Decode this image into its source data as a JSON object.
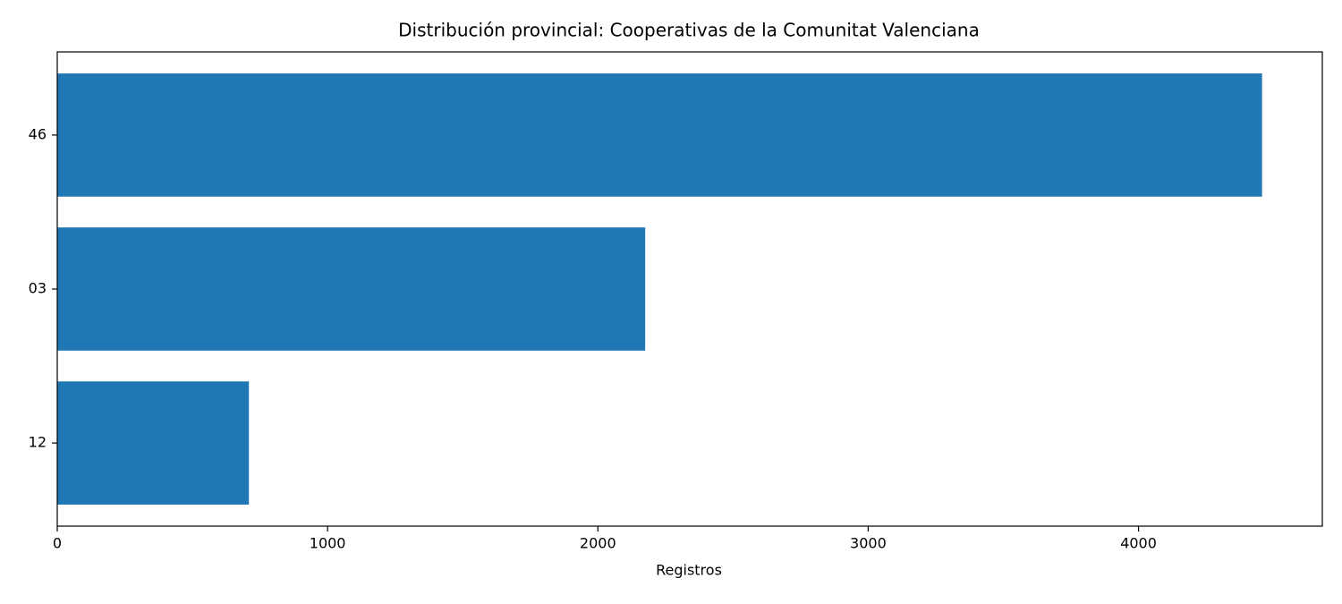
{
  "chart_data": {
    "type": "barh",
    "title": "Distribución provincial: Cooperativas de la Comunitat Valenciana",
    "xlabel": "Registros",
    "categories": [
      "46",
      "03",
      "12"
    ],
    "values": [
      4457,
      2175,
      709
    ],
    "color": "#1f77b4",
    "xlim": [
      0,
      4680
    ],
    "xticks": [
      0,
      1000,
      2000,
      3000,
      4000
    ],
    "grid": false
  }
}
